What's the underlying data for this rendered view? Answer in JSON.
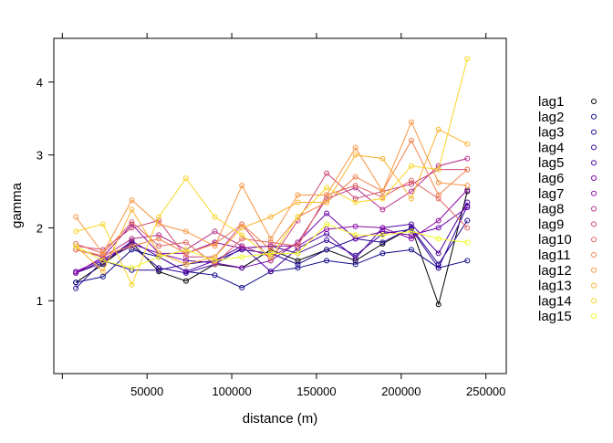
{
  "chart_data": {
    "type": "line",
    "xlabel": "distance (m)",
    "ylabel": "gamma",
    "xlim": [
      -5000,
      262000
    ],
    "ylim": [
      0,
      4.6
    ],
    "xticks": [
      50000,
      100000,
      150000,
      200000,
      250000
    ],
    "xtick_labels": [
      "50000",
      "100000",
      "150000",
      "200000",
      "250000"
    ],
    "yticks": [
      1,
      2,
      3,
      4
    ],
    "ytick_labels": [
      "1",
      "2",
      "3",
      "4"
    ],
    "legend_position": "right",
    "x": [
      8000,
      24000,
      41000,
      57000,
      73000,
      90000,
      106000,
      123000,
      139000,
      156000,
      173000,
      189000,
      206000,
      222000,
      239000
    ],
    "series": [
      {
        "name": "lag1",
        "color": "#000000",
        "values": [
          1.25,
          1.5,
          1.8,
          1.4,
          1.27,
          1.5,
          1.45,
          1.7,
          1.55,
          1.7,
          1.55,
          1.78,
          2.0,
          0.95,
          2.5
        ]
      },
      {
        "name": "lag2",
        "color": "#0d0887",
        "values": [
          1.25,
          1.33,
          1.7,
          1.6,
          1.4,
          1.35,
          1.18,
          1.4,
          1.45,
          1.55,
          1.5,
          1.65,
          1.7,
          1.45,
          1.55
        ]
      },
      {
        "name": "lag3",
        "color": "#220690",
        "values": [
          1.17,
          1.55,
          1.42,
          1.42,
          1.5,
          1.55,
          1.7,
          1.65,
          1.5,
          1.7,
          1.85,
          1.8,
          2.0,
          1.5,
          2.1
        ]
      },
      {
        "name": "lag4",
        "color": "#35049a",
        "values": [
          1.38,
          1.55,
          1.75,
          1.45,
          1.38,
          1.5,
          1.72,
          1.75,
          1.65,
          1.83,
          1.62,
          1.92,
          1.98,
          1.45,
          2.3
        ]
      },
      {
        "name": "lag5",
        "color": "#4c02a1",
        "values": [
          1.38,
          1.52,
          1.82,
          1.6,
          1.4,
          1.55,
          1.75,
          1.4,
          1.72,
          1.92,
          1.58,
          2.0,
          2.05,
          1.65,
          2.35
        ]
      },
      {
        "name": "lag6",
        "color": "#6a00a8",
        "values": [
          1.4,
          1.57,
          1.78,
          1.65,
          1.55,
          1.52,
          1.45,
          1.55,
          1.8,
          2.2,
          1.85,
          1.95,
          1.9,
          2.0,
          2.28
        ]
      },
      {
        "name": "lag7",
        "color": "#8b0aa5",
        "values": [
          1.38,
          1.6,
          2.05,
          1.65,
          1.65,
          1.8,
          1.72,
          1.75,
          1.75,
          1.98,
          2.02,
          2.0,
          1.85,
          2.1,
          2.52
        ]
      },
      {
        "name": "lag8",
        "color": "#b52f8c",
        "values": [
          1.7,
          1.6,
          1.85,
          1.9,
          1.7,
          1.95,
          1.75,
          1.6,
          1.8,
          2.4,
          2.55,
          2.25,
          2.5,
          2.85,
          2.95
        ]
      },
      {
        "name": "lag9",
        "color": "#cc4778",
        "values": [
          1.75,
          1.7,
          2.0,
          2.1,
          1.6,
          1.6,
          2.05,
          1.55,
          2.1,
          2.75,
          2.4,
          2.5,
          2.6,
          2.8,
          2.8
        ]
      },
      {
        "name": "lag10",
        "color": "#e16462",
        "values": [
          1.78,
          1.65,
          2.08,
          1.75,
          1.8,
          1.5,
          1.85,
          1.8,
          1.75,
          2.45,
          2.58,
          2.42,
          2.65,
          2.4,
          2.0
        ]
      },
      {
        "name": "lag11",
        "color": "#f0804d",
        "values": [
          1.7,
          1.62,
          1.75,
          1.85,
          1.65,
          1.78,
          2.05,
          1.7,
          2.15,
          2.35,
          2.7,
          2.5,
          3.2,
          2.45,
          2.8
        ]
      },
      {
        "name": "lag12",
        "color": "#f89540",
        "values": [
          2.15,
          1.65,
          2.38,
          2.05,
          1.95,
          1.75,
          2.58,
          1.85,
          2.45,
          2.45,
          3.1,
          2.5,
          3.45,
          2.62,
          2.58
        ]
      },
      {
        "name": "lag13",
        "color": "#fbb230",
        "values": [
          1.75,
          1.4,
          2.25,
          1.65,
          1.5,
          1.6,
          2.0,
          2.15,
          2.35,
          2.35,
          3.0,
          2.95,
          2.4,
          3.35,
          3.15
        ]
      },
      {
        "name": "lag14",
        "color": "#f9d524",
        "values": [
          1.95,
          2.05,
          1.22,
          2.15,
          2.68,
          2.15,
          1.9,
          1.6,
          2.15,
          2.55,
          2.35,
          2.4,
          2.85,
          2.8,
          4.32
        ]
      },
      {
        "name": "lag15",
        "color": "#f0f921",
        "values": [
          1.75,
          1.55,
          1.45,
          1.6,
          1.7,
          1.55,
          1.6,
          1.65,
          1.65,
          2.05,
          1.9,
          1.9,
          1.95,
          1.85,
          1.8
        ]
      }
    ]
  }
}
